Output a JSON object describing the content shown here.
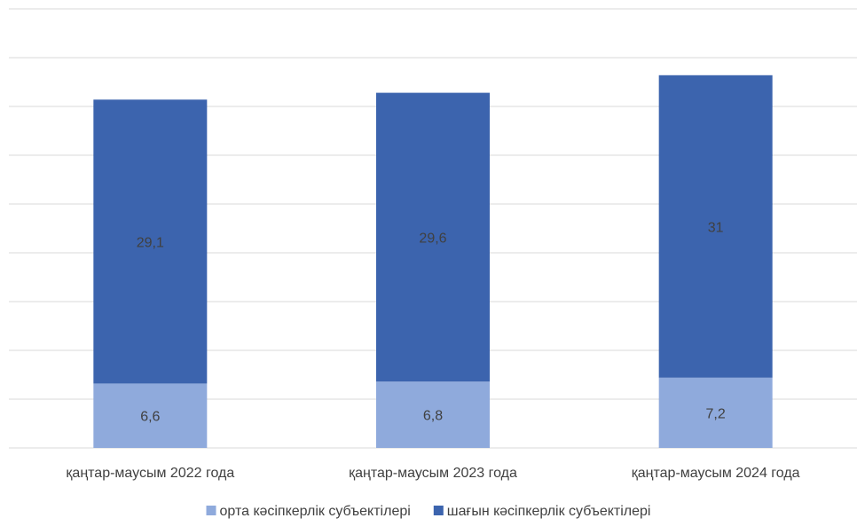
{
  "chart_data": {
    "type": "bar",
    "stacked": true,
    "categories": [
      "қаңтар-маусым 2022 года",
      "қаңтар-маусым 2023 года",
      "қаңтар-маусым 2024 года"
    ],
    "series": [
      {
        "name": "орта кәсіпкерлік субъектілері",
        "values": [
          6.6,
          6.8,
          7.2
        ],
        "color": "#8faadc",
        "labels": [
          "6,6",
          "6,8",
          "7,2"
        ]
      },
      {
        "name": "шағын кәсіпкерлік субъектілері",
        "values": [
          29.1,
          29.6,
          31
        ],
        "color": "#3c64ae",
        "labels": [
          "29,1",
          "29,6",
          "31"
        ]
      }
    ],
    "ylim": [
      0,
      45
    ],
    "grid": true,
    "legend": "bottom",
    "title": "",
    "xlabel": "",
    "ylabel": ""
  }
}
